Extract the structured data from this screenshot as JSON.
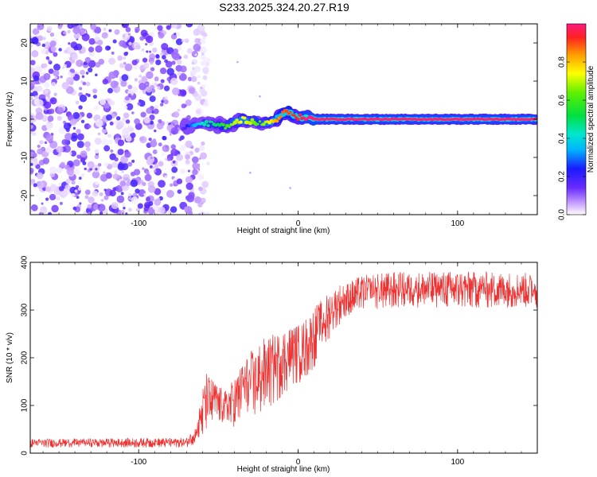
{
  "title": "S233.2025.324.20.27.R19",
  "chart_data": [
    {
      "type": "heatmap",
      "xlabel": "Height of straight line (km)",
      "ylabel": "Frequency (Hz)",
      "xlim": [
        -168,
        150
      ],
      "ylim": [
        -25,
        25
      ],
      "x_ticks": [
        -100,
        0,
        100
      ],
      "x_tick_labels": [
        "-100",
        "0",
        "100"
      ],
      "y_ticks": [
        -20,
        -10,
        0,
        10,
        20
      ],
      "y_tick_labels": [
        "-20",
        "-10",
        "0",
        "10",
        "20"
      ],
      "colorbar": {
        "label": "Normalized spectral amplitude",
        "range": [
          0,
          1
        ],
        "ticks": [
          0.0,
          0.2,
          0.4,
          0.6,
          0.8
        ],
        "tick_labels": [
          "0.0",
          "0.2",
          "0.4",
          "0.6",
          "0.8"
        ]
      },
      "noise_region_x": [
        -168,
        -63
      ],
      "tone_track": {
        "x": [
          -72,
          -65,
          -58,
          -50,
          -45,
          -40,
          -35,
          -30,
          -25,
          -20,
          -15,
          -12,
          -8,
          -5,
          0,
          5,
          10,
          30,
          60,
          100,
          150
        ],
        "frequency": [
          -2.0,
          -1.5,
          -1.0,
          -1.5,
          -2.0,
          -1.0,
          0.0,
          -0.5,
          -1.0,
          -1.0,
          -0.5,
          0.5,
          2.0,
          1.5,
          0.5,
          0.5,
          0.0,
          0.0,
          0.0,
          0.0,
          0.0
        ],
        "amplitude": [
          0.15,
          0.35,
          0.45,
          0.5,
          0.6,
          0.7,
          0.75,
          0.7,
          0.6,
          0.7,
          0.8,
          0.85,
          0.9,
          0.9,
          0.95,
          1.0,
          1.0,
          1.0,
          1.0,
          1.0,
          1.0
        ]
      }
    },
    {
      "type": "line",
      "xlabel": "Height of straight line (km)",
      "ylabel": "SNR (10 * v/v)",
      "xlim": [
        -168,
        150
      ],
      "ylim": [
        0,
        400
      ],
      "x_ticks": [
        -100,
        0,
        100
      ],
      "x_tick_labels": [
        "-100",
        "0",
        "100"
      ],
      "y_ticks": [
        0,
        100,
        200,
        300,
        400
      ],
      "y_tick_labels": [
        "0",
        "100",
        "200",
        "300",
        "400"
      ],
      "color": "#ee3333",
      "envelope": {
        "x": [
          -168,
          -70,
          -64,
          -58,
          -52,
          -46,
          -40,
          -34,
          -28,
          -22,
          -16,
          -10,
          -4,
          2,
          8,
          14,
          20,
          26,
          32,
          38,
          44,
          60,
          80,
          100,
          120,
          150
        ],
        "low": [
          12,
          12,
          20,
          40,
          70,
          60,
          50,
          80,
          60,
          90,
          100,
          120,
          140,
          150,
          170,
          200,
          240,
          270,
          290,
          300,
          300,
          305,
          305,
          305,
          305,
          305
        ],
        "high": [
          30,
          32,
          60,
          170,
          150,
          130,
          160,
          200,
          220,
          240,
          250,
          260,
          270,
          270,
          300,
          320,
          340,
          355,
          360,
          370,
          375,
          380,
          380,
          382,
          380,
          378
        ]
      }
    }
  ]
}
